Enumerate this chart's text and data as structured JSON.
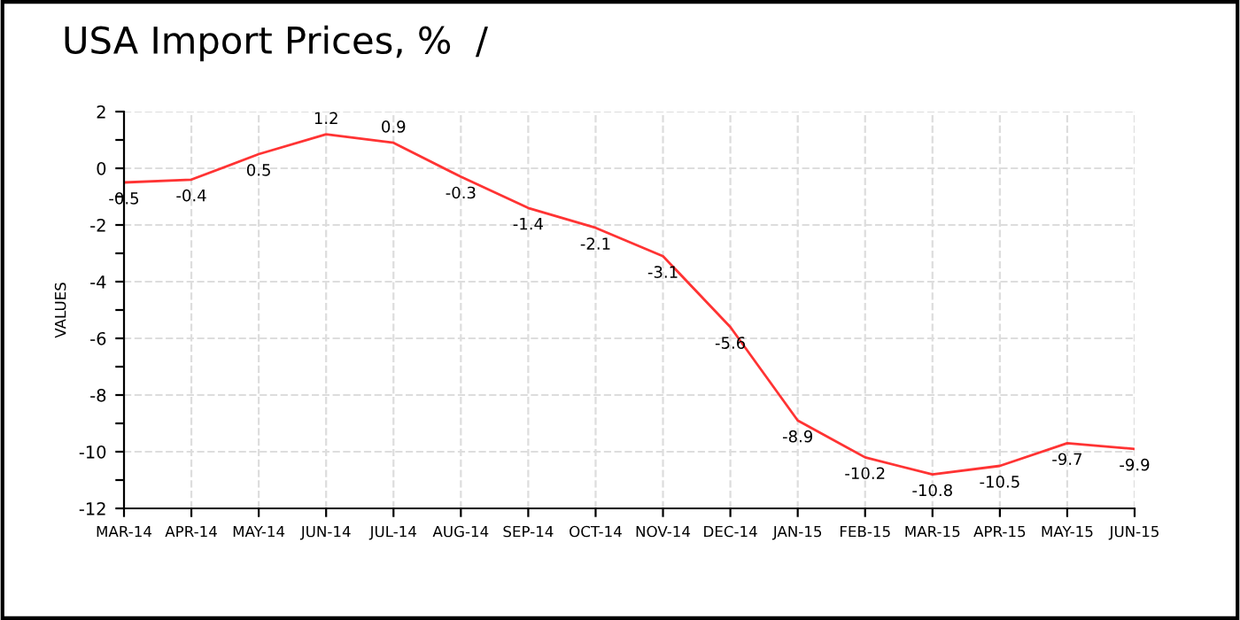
{
  "chart_data": {
    "type": "line",
    "title": "USA Import Prices, %  /",
    "ylabel": "VALUES",
    "categories": [
      "MAR-14",
      "APR-14",
      "MAY-14",
      "JUN-14",
      "JUL-14",
      "AUG-14",
      "SEP-14",
      "OCT-14",
      "NOV-14",
      "DEC-14",
      "JAN-15",
      "FEB-15",
      "MAR-15",
      "APR-15",
      "MAY-15",
      "JUN-15"
    ],
    "series": [
      {
        "color": "#ff3333",
        "values": [
          -0.5,
          -0.4,
          0.5,
          1.2,
          0.9,
          -0.3,
          -1.4,
          -2.1,
          -3.1,
          -5.6,
          -8.9,
          -10.2,
          -10.8,
          -10.5,
          -9.7,
          -9.9
        ]
      }
    ],
    "ylim": [
      -12,
      2
    ],
    "yticks": [
      -12,
      {
        "value": -11,
        "label": null
      },
      -10,
      {
        "value": -9,
        "label": null
      },
      -8,
      {
        "value": -7,
        "label": null
      },
      -6,
      {
        "value": -5,
        "label": null
      },
      -4,
      {
        "value": -3,
        "label": null
      },
      -2,
      {
        "value": -1,
        "label": null
      },
      0,
      {
        "value": 1,
        "label": null
      },
      2
    ],
    "grid": true,
    "data_labels": true,
    "marker": "none",
    "line_style": "solid"
  }
}
